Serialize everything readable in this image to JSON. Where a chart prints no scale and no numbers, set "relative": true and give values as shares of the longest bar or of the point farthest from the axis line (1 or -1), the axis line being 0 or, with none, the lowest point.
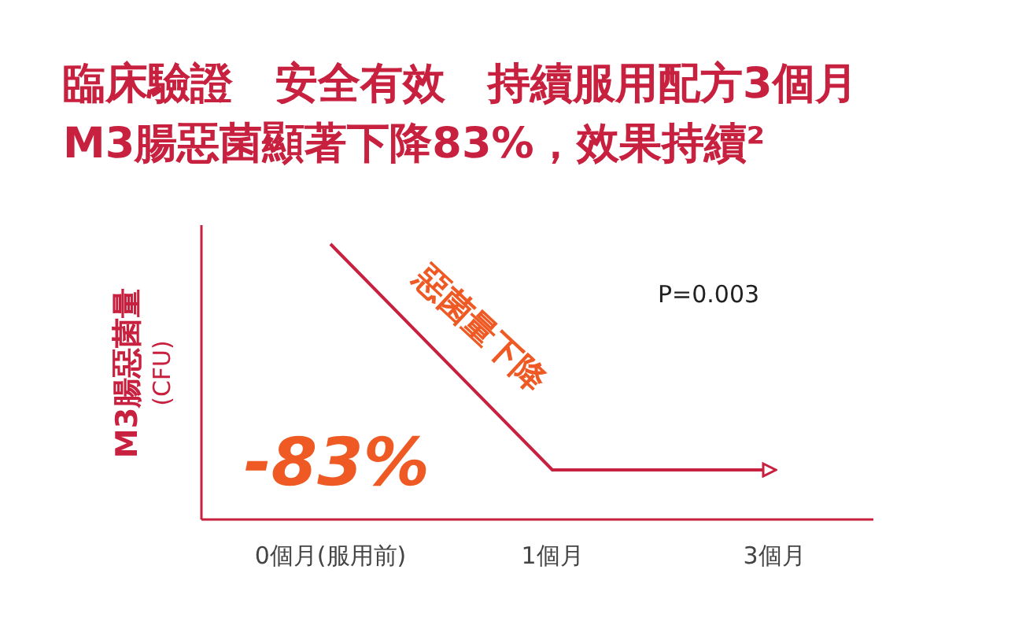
{
  "chart_data": {
    "type": "line",
    "title": "臨床驗證　安全有效　持續服用配方3個月",
    "subtitle": "M3腸惡菌顯著下降83%，效果持續²",
    "ylabel": "M3腸惡菌量 (CFU)",
    "categories": [
      "0個月(服用前)",
      "1個月",
      "3個月"
    ],
    "relative": true,
    "series": [
      {
        "color": "#c8213f",
        "values": [
          1,
          0.18,
          0.18
        ]
      }
    ],
    "marker": "none",
    "line_style": "solid",
    "grid": false,
    "annotations": [
      "惡菌量下降",
      "-83%",
      "P=0.003"
    ]
  }
}
